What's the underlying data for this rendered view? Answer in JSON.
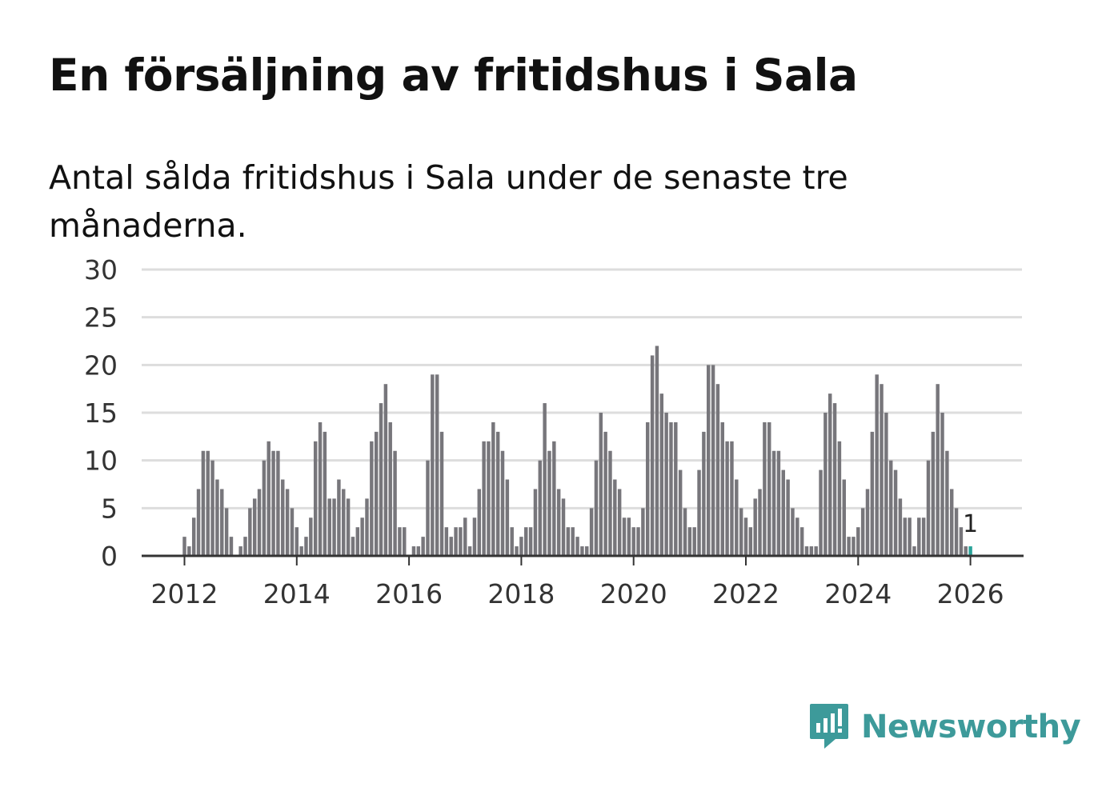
{
  "title": "En försäljning av fritidshus i Sala",
  "subtitle": "Antal sålda fritidshus i Sala under de senaste tre månaderna.",
  "brand": {
    "name": "Newsworthy",
    "color": "#3d9a9a"
  },
  "chart_data": {
    "type": "bar",
    "title": "En försäljning av fritidshus i Sala",
    "subtitle": "Antal sålda fritidshus i Sala under de senaste tre månaderna.",
    "xlabel": "",
    "ylabel": "",
    "ylim": [
      0,
      30
    ],
    "yticks": [
      0,
      5,
      10,
      15,
      20,
      25,
      30
    ],
    "xticks": [
      "2012",
      "2014",
      "2016",
      "2018",
      "2020",
      "2022",
      "2024",
      "2026"
    ],
    "grid": true,
    "bar_color": "#77767b",
    "highlight_color": "#2aa39a",
    "start": "2012-01",
    "highlight_label": "1",
    "values": [
      2,
      1,
      4,
      7,
      11,
      11,
      10,
      8,
      7,
      5,
      2,
      0,
      1,
      2,
      5,
      6,
      7,
      10,
      12,
      11,
      11,
      8,
      7,
      5,
      3,
      1,
      2,
      4,
      12,
      14,
      13,
      6,
      6,
      8,
      7,
      6,
      2,
      3,
      4,
      6,
      12,
      13,
      16,
      18,
      14,
      11,
      3,
      3,
      0,
      1,
      1,
      2,
      10,
      19,
      19,
      13,
      3,
      2,
      3,
      3,
      4,
      1,
      4,
      7,
      12,
      12,
      14,
      13,
      11,
      8,
      3,
      1,
      2,
      3,
      3,
      7,
      10,
      16,
      11,
      12,
      7,
      6,
      3,
      3,
      2,
      1,
      1,
      5,
      10,
      15,
      13,
      11,
      8,
      7,
      4,
      4,
      3,
      3,
      5,
      14,
      21,
      22,
      17,
      15,
      14,
      14,
      9,
      5,
      3,
      3,
      9,
      13,
      20,
      20,
      18,
      14,
      12,
      12,
      8,
      5,
      4,
      3,
      6,
      7,
      14,
      14,
      11,
      11,
      9,
      8,
      5,
      4,
      3,
      1,
      1,
      1,
      9,
      15,
      17,
      16,
      12,
      8,
      2,
      2,
      3,
      5,
      7,
      13,
      19,
      18,
      15,
      10,
      9,
      6,
      4,
      4,
      1,
      4,
      4,
      10,
      13,
      18,
      15,
      11,
      7,
      5,
      3,
      1,
      1
    ]
  }
}
